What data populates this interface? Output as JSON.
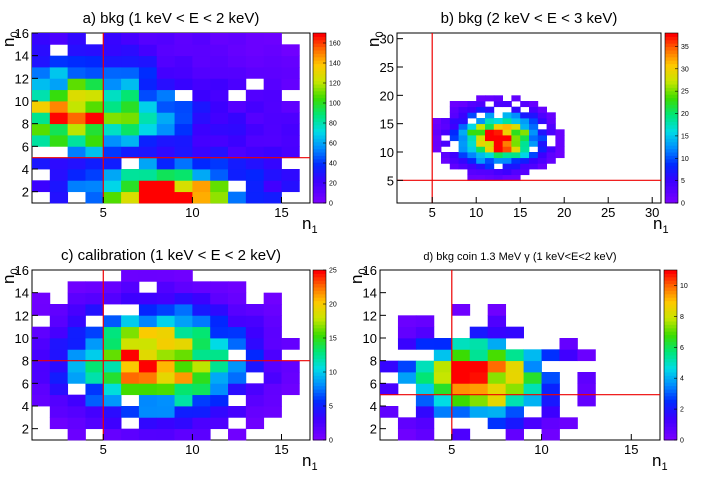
{
  "chart_data": [
    {
      "type": "heatmap",
      "title": "a) bkg (1 keV < E < 2 keV)",
      "xlabel": "n1",
      "ylabel": "n0",
      "xlim": [
        1,
        16.6
      ],
      "ylim": [
        1,
        16
      ],
      "xticks": [
        5,
        10,
        15
      ],
      "yticks": [
        2,
        4,
        6,
        8,
        10,
        12,
        14,
        16
      ],
      "zmax": 170,
      "zticks": [
        0,
        20,
        40,
        60,
        80,
        100,
        120,
        140,
        160
      ],
      "cut": {
        "x": 5,
        "y": 5
      },
      "model": {
        "grid": [
          15,
          15
        ],
        "cx": 3.5,
        "cy": 9,
        "sx": 3.0,
        "sy": 2.2,
        "amp": 130,
        "base": 18,
        "cx2": 8.5,
        "cy2": 2,
        "sx2": 2.5,
        "sy2": 1.3,
        "amp2": 170,
        "seed": 3,
        "keep": 0.92,
        "taper": true
      }
    },
    {
      "type": "heatmap",
      "title": "b) bkg (2 keV < E < 3 keV)",
      "xlabel": "n1",
      "ylabel": "n0",
      "xlim": [
        1,
        31
      ],
      "ylim": [
        1,
        31
      ],
      "xticks": [
        5,
        10,
        15,
        20,
        25,
        30
      ],
      "yticks": [
        5,
        10,
        15,
        20,
        25,
        30
      ],
      "zmax": 38,
      "zticks": [
        0,
        5,
        10,
        15,
        20,
        25,
        30,
        35
      ],
      "cut": {
        "x": 5,
        "y": 5
      },
      "model": {
        "grid": [
          30,
          30
        ],
        "cx": 12.5,
        "cy": 12.5,
        "sx": 2.8,
        "sy": 2.8,
        "amp": 38,
        "base": 0,
        "seed": 11,
        "keep": 0.85,
        "radius": 7.5
      }
    },
    {
      "type": "heatmap",
      "title": "c) calibration (1 keV < E < 2 keV)",
      "xlabel": "n1",
      "ylabel": "n0",
      "xlim": [
        1,
        16.6
      ],
      "ylim": [
        1,
        16
      ],
      "xticks": [
        5,
        10,
        15
      ],
      "yticks": [
        2,
        4,
        6,
        8,
        10,
        12,
        14,
        16
      ],
      "zmax": 25,
      "zticks": [
        0,
        5,
        10,
        15,
        20,
        25
      ],
      "cut": {
        "x": 5,
        "y": 8
      },
      "model": {
        "grid": [
          15,
          15
        ],
        "cx": 8,
        "cy": 8,
        "sx": 3.0,
        "sy": 2.8,
        "amp": 24,
        "base": 0,
        "seed": 7,
        "keep": 0.8,
        "radius": 8
      }
    },
    {
      "type": "heatmap",
      "title": "d) bkg coin 1.3 MeV γ (1 keV<E<2 keV)",
      "xlabel": "n1",
      "ylabel": "n0",
      "xlim": [
        1,
        16.6
      ],
      "ylim": [
        1,
        16
      ],
      "xticks": [
        5,
        10,
        15
      ],
      "yticks": [
        2,
        4,
        6,
        8,
        10,
        12,
        14,
        16
      ],
      "zmax": 11,
      "zticks": [
        0,
        2,
        4,
        6,
        8,
        10
      ],
      "cut": {
        "x": 5,
        "y": 5
      },
      "model": {
        "grid": [
          15,
          15
        ],
        "cx": 6.5,
        "cy": 6.5,
        "sx": 2.5,
        "sy": 2.2,
        "amp": 11,
        "base": 0,
        "seed": 21,
        "keep": 0.5,
        "radius": 7
      }
    }
  ]
}
